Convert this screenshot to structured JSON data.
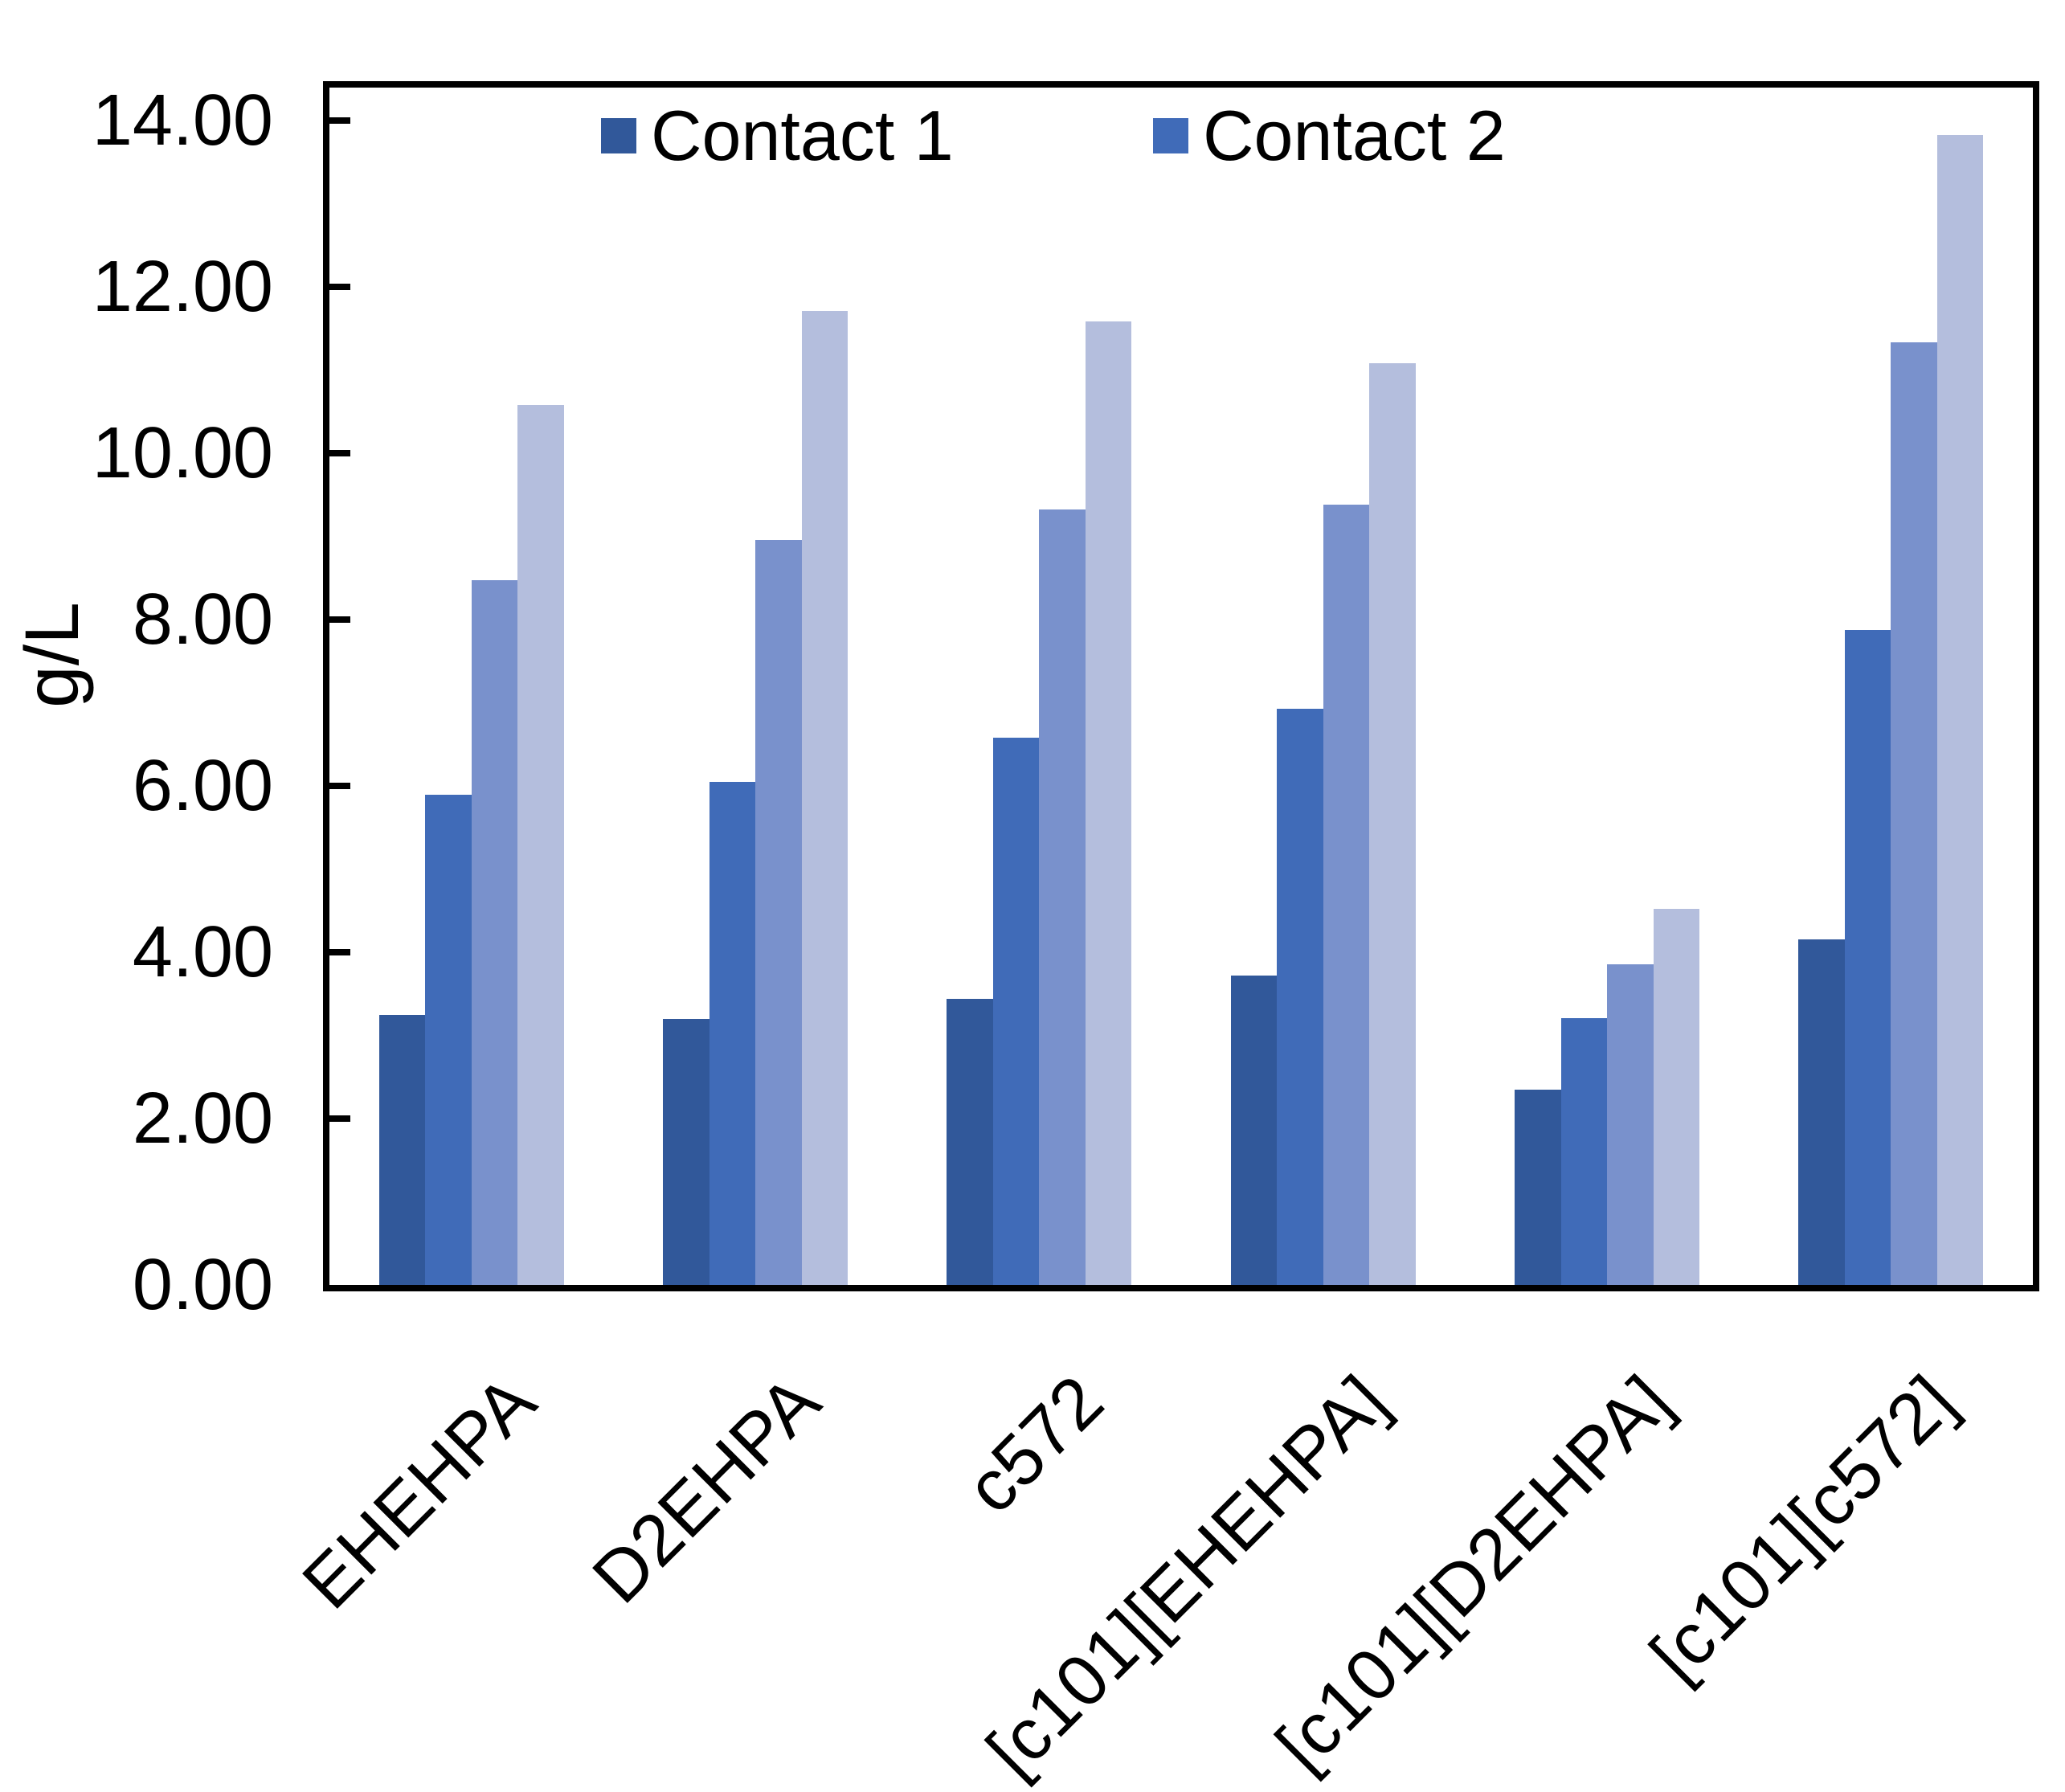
{
  "chart_data": {
    "type": "bar",
    "title": "",
    "xlabel": "",
    "ylabel": "g/L",
    "ylim": [
      0,
      14.4
    ],
    "ytick_step": 2,
    "grid": false,
    "legend_position": "top-inside",
    "yticks": [
      {
        "value": 0,
        "label": "0.00"
      },
      {
        "value": 2,
        "label": "2.00"
      },
      {
        "value": 4,
        "label": "4.00"
      },
      {
        "value": 6,
        "label": "6.00"
      },
      {
        "value": 8,
        "label": "8.00"
      },
      {
        "value": 10,
        "label": "10.00"
      },
      {
        "value": 12,
        "label": "12.00"
      },
      {
        "value": 14,
        "label": "14.00"
      }
    ],
    "categories": [
      "EHEHPA",
      "D2EHPA",
      "c572",
      "[c101][EHEHPA]",
      "[c101][D2EHPA]",
      "[c101][c572]"
    ],
    "series": [
      {
        "name": "Contact 1",
        "color": "#31589A",
        "values": [
          3.25,
          3.2,
          3.44,
          3.72,
          2.35,
          4.16
        ]
      },
      {
        "name": "Contact 2",
        "color": "#406BB8",
        "values": [
          5.9,
          6.05,
          6.58,
          6.93,
          3.21,
          7.88
        ]
      },
      {
        "name": null,
        "color": "#7991CC",
        "values": [
          8.48,
          8.96,
          9.33,
          9.38,
          3.86,
          11.34
        ]
      },
      {
        "name": null,
        "color": "#B4BEDD",
        "values": [
          10.58,
          11.71,
          11.59,
          11.09,
          4.52,
          13.83
        ]
      }
    ],
    "legend": [
      {
        "label": "Contact 1",
        "series": 0
      },
      {
        "label": "Contact 2",
        "series": 1
      }
    ]
  }
}
